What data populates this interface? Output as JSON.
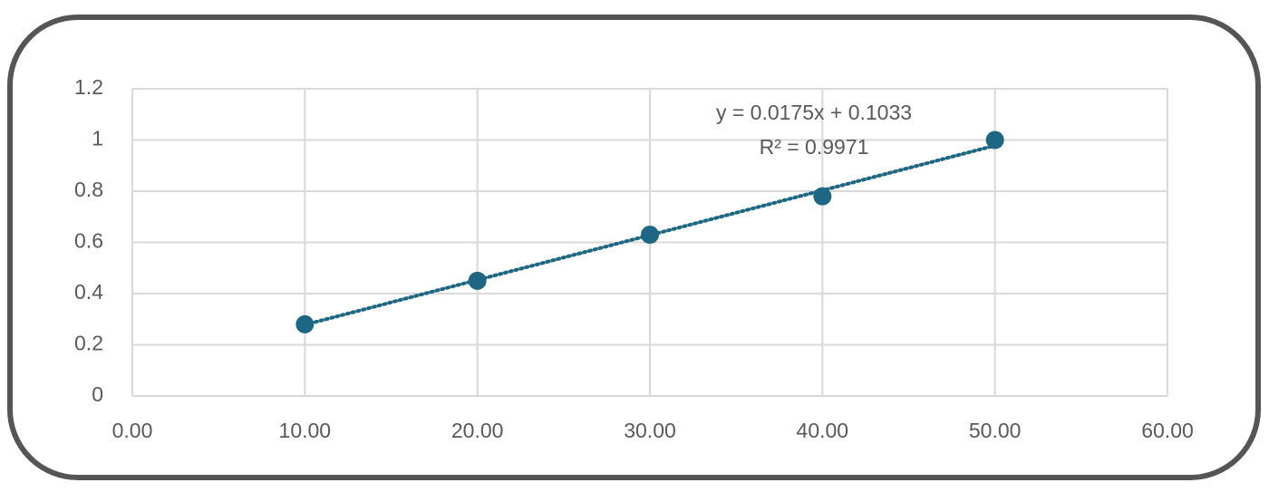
{
  "chart_data": {
    "type": "scatter",
    "x": [
      10,
      20,
      30,
      40,
      50
    ],
    "series": [
      {
        "color": "#1d6784",
        "values": [
          0.28,
          0.45,
          0.63,
          0.78,
          1.0
        ]
      }
    ],
    "xlim": [
      0,
      60
    ],
    "xticks": [
      {
        "value": 0,
        "label": "0.00"
      },
      {
        "value": 10,
        "label": "10.00"
      },
      {
        "value": 20,
        "label": "20.00"
      },
      {
        "value": 30,
        "label": "30.00"
      },
      {
        "value": 40,
        "label": "40.00"
      },
      {
        "value": 50,
        "label": "50.00"
      },
      {
        "value": 60,
        "label": "60.00"
      }
    ],
    "ylim": [
      0,
      1.2
    ],
    "yticks": [
      0,
      0.2,
      0.4,
      0.6,
      0.8,
      1,
      1.2
    ],
    "grid": true,
    "trendline": {
      "slope": 0.0175,
      "intercept": 0.1033
    },
    "annotations": [
      "y = 0.0175x + 0.1033",
      "R² = 0.9971"
    ]
  }
}
